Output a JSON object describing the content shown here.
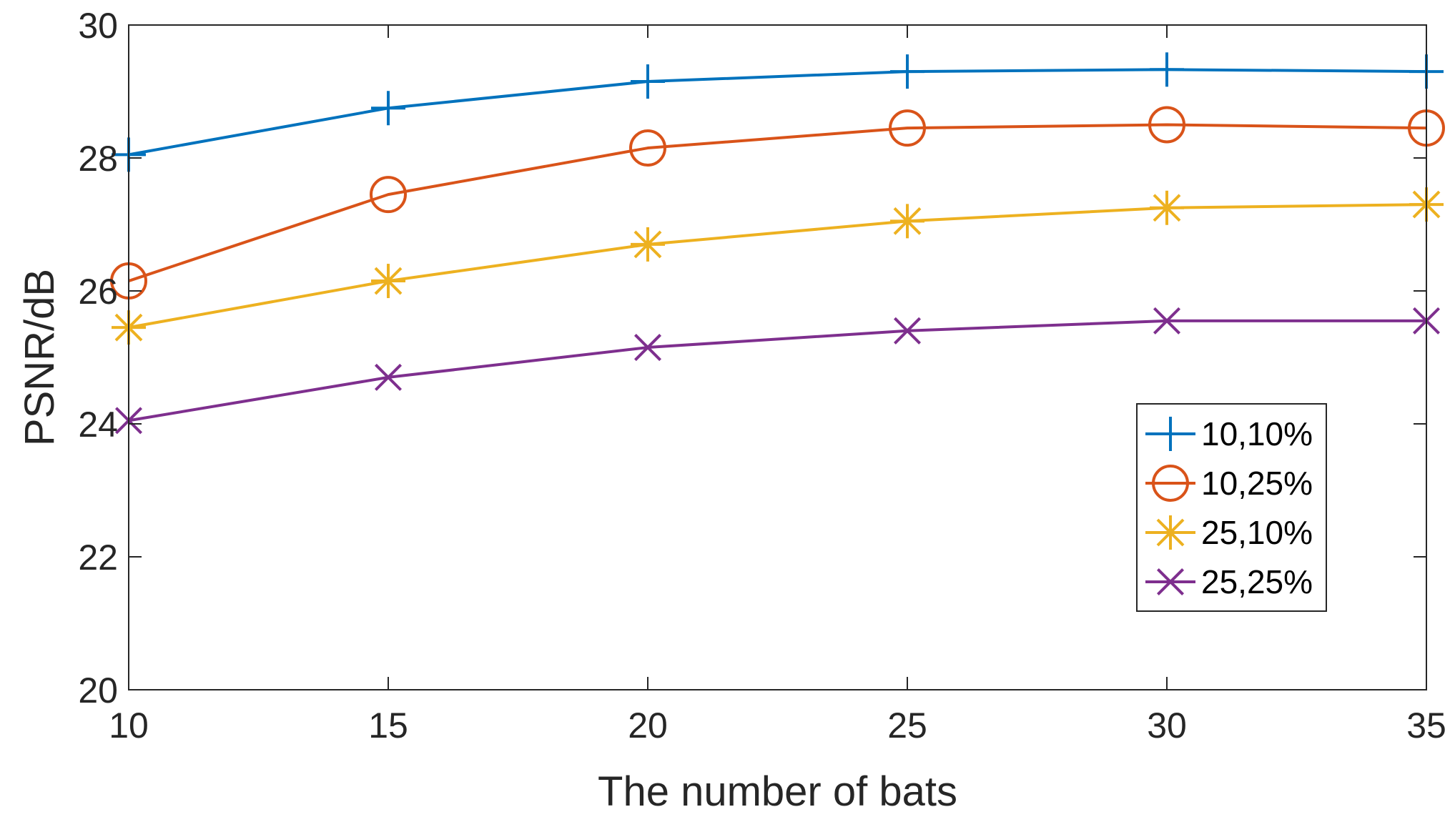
{
  "chart_data": {
    "type": "line",
    "title": "",
    "xlabel": "The number of bats",
    "ylabel": "PSNR/dB",
    "x": [
      10,
      15,
      20,
      25,
      30,
      35
    ],
    "xlim": [
      10,
      35
    ],
    "ylim": [
      20,
      30
    ],
    "xticks": [
      10,
      15,
      20,
      25,
      30,
      35
    ],
    "yticks": [
      20,
      22,
      24,
      26,
      28,
      30
    ],
    "grid": false,
    "legend_position": "right, below center",
    "series": [
      {
        "name": "10,10%",
        "marker": "plus",
        "color": "#0072BD",
        "values": [
          28.05,
          28.75,
          29.15,
          29.3,
          29.33,
          29.3
        ]
      },
      {
        "name": "10,25%",
        "marker": "circle",
        "color": "#D95319",
        "values": [
          26.15,
          27.45,
          28.15,
          28.45,
          28.5,
          28.45
        ]
      },
      {
        "name": "25,10%",
        "marker": "star",
        "color": "#EDB120",
        "values": [
          25.45,
          26.15,
          26.7,
          27.05,
          27.25,
          27.3
        ]
      },
      {
        "name": "25,25%",
        "marker": "cross",
        "color": "#7E2F8E",
        "values": [
          24.05,
          24.7,
          25.15,
          25.4,
          25.55,
          25.55
        ]
      }
    ]
  }
}
